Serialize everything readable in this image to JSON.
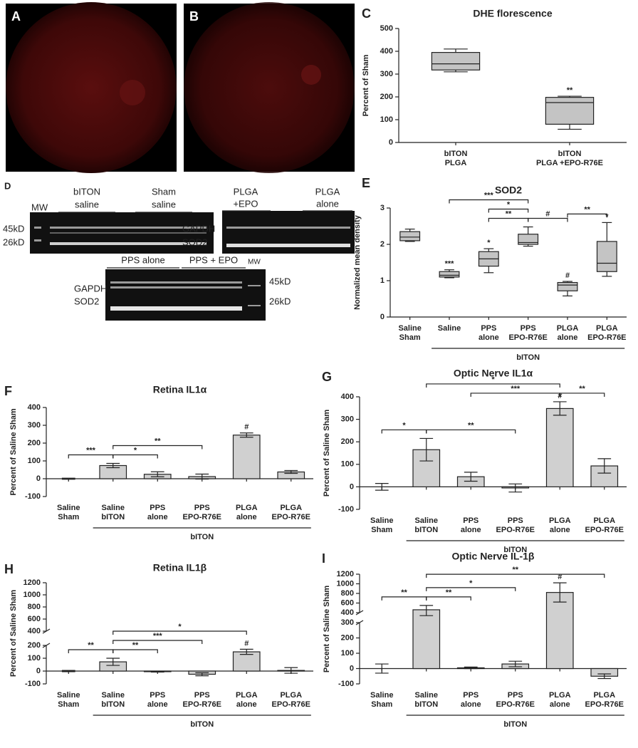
{
  "images": [
    {
      "panel": "A"
    },
    {
      "panel": "B"
    }
  ],
  "blot": {
    "panel": "D",
    "labels": [
      "MW",
      "bITON",
      "saline",
      "Sham",
      "saline",
      "45kD",
      "26kD",
      "GAPDH",
      "SOD2",
      "PLGA",
      "+EPO",
      "PLGA",
      "alone",
      "PPS alone",
      "PPS + EPO",
      "MW",
      "GAPDH",
      "SOD2",
      "45kD",
      "26kD"
    ]
  },
  "chart_data": [
    {
      "panel": "C",
      "type": "box",
      "title": "DHE  florescence",
      "y_label": "Percent of Sham",
      "categories": [
        [
          "bITON",
          "PLGA"
        ],
        [
          "bITON",
          "PLGA +EPO-R76E"
        ]
      ],
      "min": [
        310,
        58
      ],
      "q1": [
        318,
        80
      ],
      "median": [
        345,
        175
      ],
      "q3": [
        395,
        198
      ],
      "max": [
        410,
        203
      ],
      "color": "#c4c4c4",
      "ylim": [
        0,
        500
      ],
      "yticks": [
        0,
        100,
        200,
        300,
        400,
        500
      ],
      "marks": [
        {
          "index": 1,
          "label": "**"
        }
      ],
      "brackets": []
    },
    {
      "panel": "E",
      "type": "box",
      "title": "SOD2",
      "y_label": "Normalized mean density",
      "categories": [
        [
          "Saline",
          "Sham"
        ],
        [
          "Saline"
        ],
        [
          "PPS",
          "alone"
        ],
        [
          "PPS",
          "EPO-R76E"
        ],
        [
          "PLGA",
          "alone"
        ],
        [
          "PLGA",
          "EPO-R76E"
        ]
      ],
      "group": {
        "label": "bITON",
        "from": 1,
        "to": 5
      },
      "min": [
        2.08,
        1.08,
        1.22,
        1.95,
        0.58,
        1.12
      ],
      "q1": [
        2.1,
        1.1,
        1.4,
        2.0,
        0.72,
        1.25
      ],
      "median": [
        2.2,
        1.15,
        1.6,
        2.05,
        0.88,
        1.48
      ],
      "q3": [
        2.35,
        1.25,
        1.8,
        2.28,
        0.95,
        2.08
      ],
      "max": [
        2.42,
        1.3,
        1.88,
        2.48,
        0.98,
        2.6
      ],
      "color": "#c4c4c4",
      "ylim": [
        0,
        3
      ],
      "yticks": [
        0,
        1,
        2,
        3
      ],
      "marks": [
        {
          "index": 1,
          "label": "***"
        },
        {
          "index": 2,
          "label": "*"
        },
        {
          "index": 4,
          "label": "#"
        },
        {
          "index": 5,
          "label": "*"
        }
      ],
      "brackets": [
        {
          "from": 2,
          "to": 3,
          "label": "**"
        },
        {
          "from": 3,
          "to": 4,
          "label": "#"
        },
        {
          "from": 2,
          "to": 3,
          "label": "*"
        },
        {
          "from": 1,
          "to": 3,
          "label": "***"
        },
        {
          "from": 4,
          "to": 5,
          "label": "**"
        }
      ]
    },
    {
      "panel": "F",
      "type": "bar",
      "title": "Retina IL1α",
      "y_label": "Percent of Saline Sham",
      "categories": [
        [
          "Saline",
          "Sham"
        ],
        [
          "Saline",
          "bITON"
        ],
        [
          "PPS",
          "alone"
        ],
        [
          "PPS",
          "EPO-R76E"
        ],
        [
          "PLGA",
          "alone"
        ],
        [
          "PLGA",
          "EPO-R76E"
        ]
      ],
      "group": {
        "label": "bITON",
        "from": 1,
        "to": 5
      },
      "values": [
        0,
        74,
        25,
        12,
        245,
        38
      ],
      "errors": [
        3,
        12,
        14,
        14,
        12,
        8
      ],
      "color": "#d0d0d0",
      "ylim": [
        -100,
        400
      ],
      "yticks": [
        -100,
        0,
        100,
        200,
        300,
        400
      ],
      "marks": [
        {
          "index": 4,
          "label": "#"
        }
      ],
      "brackets": [
        {
          "from": 0,
          "to": 1,
          "label": "***"
        },
        {
          "from": 1,
          "to": 2,
          "label": "*"
        },
        {
          "from": 1,
          "to": 3,
          "label": "**"
        }
      ]
    },
    {
      "panel": "G",
      "type": "bar",
      "title": "Optic Nerve IL1α",
      "y_label": "Percent of Saline Sham",
      "categories": [
        [
          "Saline",
          "Sham"
        ],
        [
          "Saline",
          "bITON"
        ],
        [
          "PPS",
          "alone"
        ],
        [
          "PPS",
          "EPO-R76E"
        ],
        [
          "PLGA",
          "alone"
        ],
        [
          "PLGA",
          "EPO-R76E"
        ]
      ],
      "group": {
        "label": "bITON",
        "from": 1,
        "to": 5
      },
      "values": [
        0,
        165,
        45,
        -5,
        348,
        93
      ],
      "errors": [
        15,
        50,
        20,
        18,
        30,
        32
      ],
      "color": "#d0d0d0",
      "ylim": [
        -100,
        400
      ],
      "yticks": [
        -100,
        0,
        100,
        200,
        300,
        400
      ],
      "marks": [
        {
          "index": 4,
          "label": "#"
        }
      ],
      "brackets": [
        {
          "from": 0,
          "to": 1,
          "label": "*"
        },
        {
          "from": 1,
          "to": 3,
          "label": "**"
        },
        {
          "from": 2,
          "to": 4,
          "label": "***"
        },
        {
          "from": 1,
          "to": 4,
          "label": "*"
        },
        {
          "from": 4,
          "to": 5,
          "label": "**"
        }
      ]
    },
    {
      "panel": "H",
      "type": "bar",
      "title": "Retina IL1β",
      "y_label": "Percent of Saline Sham",
      "categories": [
        [
          "Saline",
          "Sham"
        ],
        [
          "Saline",
          "bITON"
        ],
        [
          "PPS",
          "alone"
        ],
        [
          "PPS",
          "EPO-R76E"
        ],
        [
          "PLGA",
          "alone"
        ],
        [
          "PLGA",
          "EPO-R76E"
        ]
      ],
      "group": {
        "label": "bITON",
        "from": 1,
        "to": 5
      },
      "values": [
        0,
        72,
        -5,
        -25,
        150,
        5
      ],
      "errors": [
        5,
        28,
        3,
        12,
        20,
        22
      ],
      "color": "#d0d0d0",
      "ylim": [
        -100,
        1200
      ],
      "y_break": [
        200,
        400
      ],
      "yticks": [
        -100,
        0,
        100,
        200,
        400,
        600,
        800,
        1000,
        1200
      ],
      "marks": [
        {
          "index": 4,
          "label": "#"
        }
      ],
      "brackets": [
        {
          "from": 0,
          "to": 1,
          "label": "**"
        },
        {
          "from": 1,
          "to": 2,
          "label": "**"
        },
        {
          "from": 1,
          "to": 3,
          "label": "***"
        },
        {
          "from": 1,
          "to": 4,
          "label": "*"
        }
      ]
    },
    {
      "panel": "I",
      "type": "bar",
      "title": "Optic Nerve IL-1β",
      "y_label": "Percent of Saline Sham",
      "categories": [
        [
          "Saline",
          "Sham"
        ],
        [
          "Saline",
          "bITON"
        ],
        [
          "PPS",
          "alone"
        ],
        [
          "PPS",
          "EPO-R76E"
        ],
        [
          "PLGA",
          "alone"
        ],
        [
          "PLGA",
          "EPO-R76E"
        ]
      ],
      "group": {
        "label": "bITON",
        "from": 1,
        "to": 5
      },
      "values": [
        0,
        460,
        5,
        30,
        820,
        -50
      ],
      "errors": [
        30,
        90,
        5,
        18,
        200,
        15
      ],
      "color": "#d0d0d0",
      "ylim": [
        -100,
        1200
      ],
      "y_break": [
        300,
        400
      ],
      "yticks": [
        -100,
        0,
        100,
        200,
        300,
        400,
        600,
        800,
        1000,
        1200
      ],
      "marks": [
        {
          "index": 4,
          "label": "#"
        }
      ],
      "brackets": [
        {
          "from": 0,
          "to": 1,
          "label": "**"
        },
        {
          "from": 1,
          "to": 2,
          "label": "**"
        },
        {
          "from": 1,
          "to": 3,
          "label": "*"
        },
        {
          "from": 1,
          "to": 5,
          "label": "**"
        }
      ]
    }
  ]
}
